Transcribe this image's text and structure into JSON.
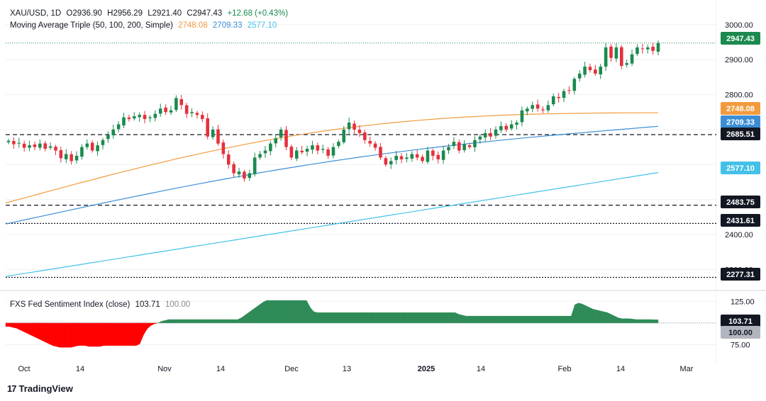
{
  "header": {
    "symbol": "XAU/USD, 1D",
    "open": "O2936.90",
    "high": "H2956.29",
    "low": "L2921.40",
    "close": "C2947.43",
    "change": "+12.68 (+0.43%)",
    "ma_label": "Moving Average Triple (50, 100, 200, Simple)",
    "ma50": "2748.08",
    "ma100": "2709.33",
    "ma200": "2577.10"
  },
  "sentiment": {
    "label": "FXS Fed Sentiment Index (close)",
    "value": "103.71",
    "baseline": "100.00"
  },
  "branding": "TradingView",
  "colors": {
    "up": "#1b8a4f",
    "down": "#e5303b",
    "ma50": "#f29b3d",
    "ma100": "#3b8ed6",
    "ma200": "#43c1e8",
    "sentiment_up": "#2e8b57",
    "sentiment_down": "#ff0000"
  },
  "chart_data": [
    {
      "type": "candlestick",
      "title": "XAU/USD, 1D",
      "ylim": [
        2250,
        3030
      ],
      "y_ticks": [
        2300,
        2400,
        2500,
        2600,
        2700,
        2800,
        2900,
        3000
      ],
      "x_ticks": [
        "Oct",
        "14",
        "Nov",
        "14",
        "Dec",
        "13",
        "2025",
        "14",
        "Feb",
        "14",
        "Mar"
      ],
      "horizontal_levels": [
        {
          "value": 2685.51,
          "style": "dashed"
        },
        {
          "value": 2483.75,
          "style": "dashed"
        },
        {
          "value": 2431.61,
          "style": "dotted"
        },
        {
          "value": 2277.31,
          "style": "dotted"
        }
      ],
      "last_price": 2947.43,
      "axis_labels": [
        {
          "text": "2947.43",
          "value": 2947.43,
          "color": "#1b8a4f"
        },
        {
          "text": "2748.08",
          "value": 2748.08,
          "color": "#f29b3d"
        },
        {
          "text": "2709.33",
          "value": 2709.33,
          "color": "#3b8ed6"
        },
        {
          "text": "2685.51",
          "value": 2685.51,
          "color": "#131722"
        },
        {
          "text": "2577.10",
          "value": 2577.1,
          "color": "#43c1e8"
        },
        {
          "text": "2483.75",
          "value": 2483.75,
          "color": "#131722"
        },
        {
          "text": "2431.61",
          "value": 2431.61,
          "color": "#131722"
        },
        {
          "text": "2277.31",
          "value": 2277.31,
          "color": "#131722"
        }
      ],
      "closes": [
        2668,
        2658,
        2662,
        2648,
        2655,
        2650,
        2660,
        2645,
        2652,
        2640,
        2618,
        2630,
        2610,
        2625,
        2650,
        2660,
        2640,
        2655,
        2670,
        2685,
        2700,
        2715,
        2735,
        2730,
        2738,
        2742,
        2730,
        2735,
        2745,
        2760,
        2750,
        2755,
        2790,
        2770,
        2745,
        2750,
        2742,
        2730,
        2680,
        2700,
        2660,
        2630,
        2600,
        2575,
        2580,
        2560,
        2575,
        2620,
        2630,
        2640,
        2660,
        2675,
        2700,
        2650,
        2620,
        2640,
        2635,
        2645,
        2655,
        2640,
        2645,
        2625,
        2650,
        2665,
        2700,
        2720,
        2700,
        2690,
        2670,
        2660,
        2648,
        2620,
        2600,
        2610,
        2625,
        2615,
        2620,
        2630,
        2620,
        2610,
        2640,
        2625,
        2615,
        2640,
        2650,
        2665,
        2640,
        2658,
        2650,
        2670,
        2680,
        2690,
        2680,
        2700,
        2710,
        2700,
        2715,
        2720,
        2755,
        2760,
        2770,
        2760,
        2755,
        2770,
        2795,
        2790,
        2810,
        2812,
        2845,
        2860,
        2880,
        2870,
        2860,
        2880,
        2935,
        2905,
        2935,
        2882,
        2890,
        2915,
        2935,
        2930,
        2935,
        2925,
        2947.43
      ],
      "ma50": {
        "start": 2490,
        "end": 2748.08
      },
      "ma100": {
        "start": 2430,
        "end": 2709.33
      },
      "ma200": {
        "start": 2280,
        "end": 2577.1
      }
    },
    {
      "type": "area",
      "title": "FXS Fed Sentiment Index (close)",
      "baseline": 100,
      "y_ticks": [
        75,
        100,
        125
      ],
      "ylim": [
        60,
        135
      ],
      "values": [
        96,
        96,
        95,
        94,
        92,
        90,
        88,
        86,
        84,
        82,
        80,
        78,
        76,
        74,
        73,
        72,
        72,
        72,
        72,
        73,
        74,
        74,
        74,
        73,
        73,
        73,
        73,
        74,
        74,
        74,
        74,
        74,
        74,
        74,
        74,
        74,
        74,
        76,
        86,
        93,
        97,
        99,
        100,
        102,
        103,
        104,
        104,
        104,
        104,
        104,
        104,
        104,
        104,
        104,
        104,
        104,
        104,
        104,
        104,
        104,
        104,
        104,
        104,
        104,
        104,
        106,
        109,
        112,
        115,
        118,
        121,
        124,
        126,
        126,
        126,
        126,
        126,
        126,
        126,
        126,
        126,
        126,
        126,
        126,
        118,
        113,
        112,
        112,
        112,
        112,
        112,
        112,
        112,
        112,
        112,
        112,
        112,
        112,
        112,
        112,
        112,
        112,
        112,
        112,
        112,
        112,
        112,
        112,
        112,
        112,
        112,
        112,
        112,
        112,
        112,
        112,
        112,
        112,
        112,
        112,
        112,
        112,
        112,
        112,
        112,
        110,
        109,
        108,
        108,
        108,
        108,
        108,
        108,
        108,
        108,
        108,
        108,
        108,
        108,
        108,
        108,
        108,
        108,
        108,
        108,
        108,
        108,
        108,
        108,
        108,
        108,
        108,
        108,
        108,
        108,
        108,
        108,
        121,
        123,
        122,
        120,
        118,
        116,
        115,
        114,
        113,
        112,
        110,
        108,
        106,
        105,
        105,
        105,
        104.5,
        104,
        104,
        104,
        104,
        104,
        103.8,
        103.71
      ]
    }
  ]
}
